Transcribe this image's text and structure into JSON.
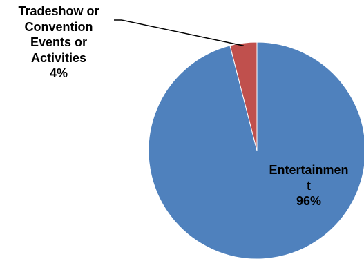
{
  "chart_data": {
    "type": "pie",
    "title": "",
    "slices": [
      {
        "name": "Entertainment",
        "value": 96,
        "color": "#4F81BD",
        "label_lines": [
          "Entertainmen",
          "t"
        ],
        "value_label": "96%"
      },
      {
        "name": "Tradeshow or Convention Events or Activities",
        "value": 4,
        "color": "#C0504D",
        "label_lines": [
          "Tradeshow or",
          "Convention",
          "Events or",
          "Activities"
        ],
        "value_label": "4%"
      }
    ],
    "legend": "none"
  }
}
